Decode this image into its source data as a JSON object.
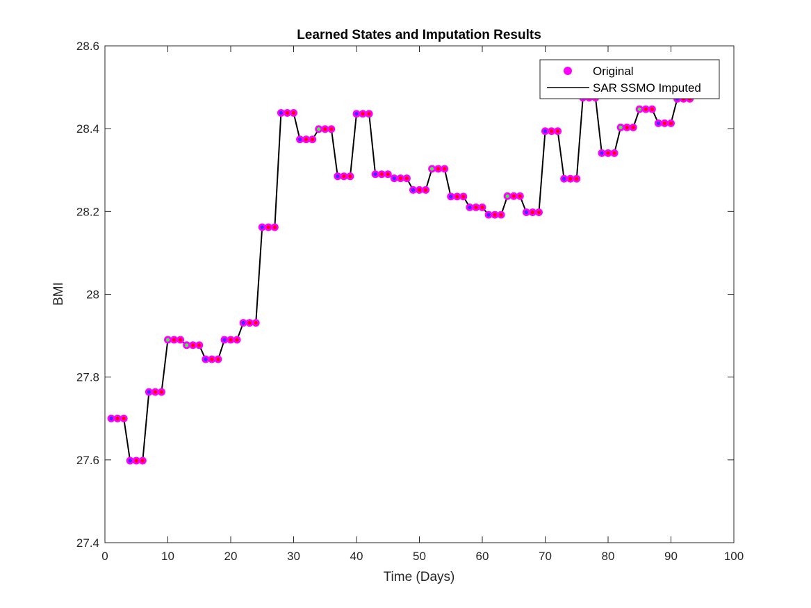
{
  "chart_data": {
    "type": "line",
    "title": "Learned States and Imputation Results",
    "xlabel": "Time (Days)",
    "ylabel": "BMI",
    "xlim": [
      0,
      100
    ],
    "ylim": [
      27.4,
      28.6
    ],
    "x_ticks": [
      "0",
      "10",
      "20",
      "30",
      "40",
      "50",
      "60",
      "70",
      "80",
      "90",
      "100"
    ],
    "y_ticks": [
      "27.4",
      "27.6",
      "27.8",
      "28",
      "28.2",
      "28.4",
      "28.6"
    ],
    "grid": false,
    "legend_position": "top-right",
    "legend": [
      {
        "label": "Original",
        "marker": "circle",
        "color": "#ff00ff"
      },
      {
        "label": "SAR SSMO Imputed",
        "marker": "line",
        "color": "#000000"
      }
    ],
    "colors": {
      "original_marker": "#ff00ff",
      "imputed_line": "#000000",
      "state_blue": "#3333ff",
      "state_red": "#ff0000",
      "state_green": "#33ff33"
    },
    "series": [
      {
        "name": "Original",
        "marker": "circle",
        "x": [
          1,
          2,
          3,
          4,
          5,
          6,
          7,
          8,
          9,
          10,
          11,
          12,
          13,
          14,
          15,
          16,
          17,
          18,
          19,
          20,
          21,
          22,
          23,
          24,
          25,
          26,
          27,
          28,
          29,
          30,
          31,
          32,
          33,
          34,
          35,
          36,
          37,
          38,
          39,
          40,
          41,
          42,
          43,
          44,
          45,
          46,
          47,
          48,
          49,
          50,
          51,
          52,
          53,
          54,
          55,
          56,
          57,
          58,
          59,
          60,
          61,
          62,
          63,
          64,
          65,
          66,
          67,
          68,
          69,
          70,
          71,
          72,
          73,
          74,
          75,
          76,
          77,
          78,
          79,
          80,
          81,
          82,
          83,
          84,
          85,
          86,
          87,
          88,
          89,
          90,
          91,
          92,
          93
        ],
        "y": [
          27.7,
          27.7,
          27.7,
          27.598,
          27.598,
          27.598,
          27.764,
          27.764,
          27.764,
          27.89,
          27.89,
          27.89,
          27.877,
          27.877,
          27.877,
          27.843,
          27.843,
          27.843,
          27.89,
          27.89,
          27.89,
          27.931,
          27.931,
          27.931,
          28.162,
          28.162,
          28.162,
          28.438,
          28.438,
          28.438,
          28.374,
          28.374,
          28.374,
          28.399,
          28.399,
          28.399,
          28.285,
          28.285,
          28.285,
          28.436,
          28.436,
          28.436,
          28.29,
          28.29,
          28.29,
          28.28,
          28.28,
          28.28,
          28.252,
          28.252,
          28.252,
          28.303,
          28.303,
          28.303,
          28.236,
          28.236,
          28.236,
          28.21,
          28.21,
          28.21,
          28.192,
          28.192,
          28.192,
          28.237,
          28.237,
          28.237,
          28.198,
          28.198,
          28.198,
          28.394,
          28.394,
          28.394,
          28.279,
          28.279,
          28.279,
          28.475,
          28.475,
          28.475,
          28.341,
          28.341,
          28.341,
          28.403,
          28.403,
          28.403,
          28.447,
          28.447,
          28.447,
          28.413,
          28.413,
          28.413,
          28.472,
          28.472,
          28.472
        ]
      },
      {
        "name": "SAR SSMO Imputed",
        "marker": "line",
        "x": [
          1,
          2,
          3,
          4,
          5,
          6,
          7,
          8,
          9,
          10,
          11,
          12,
          13,
          14,
          15,
          16,
          17,
          18,
          19,
          20,
          21,
          22,
          23,
          24,
          25,
          26,
          27,
          28,
          29,
          30,
          31,
          32,
          33,
          34,
          35,
          36,
          37,
          38,
          39,
          40,
          41,
          42,
          43,
          44,
          45,
          46,
          47,
          48,
          49,
          50,
          51,
          52,
          53,
          54,
          55,
          56,
          57,
          58,
          59,
          60,
          61,
          62,
          63,
          64,
          65,
          66,
          67,
          68,
          69,
          70,
          71,
          72,
          73,
          74,
          75,
          76,
          77,
          78,
          79,
          80,
          81,
          82,
          83,
          84,
          85,
          86,
          87,
          88,
          89,
          90,
          91,
          92,
          93
        ],
        "y": [
          27.7,
          27.7,
          27.7,
          27.598,
          27.598,
          27.598,
          27.764,
          27.764,
          27.764,
          27.89,
          27.89,
          27.89,
          27.877,
          27.877,
          27.877,
          27.843,
          27.843,
          27.843,
          27.89,
          27.89,
          27.89,
          27.931,
          27.931,
          27.931,
          28.162,
          28.162,
          28.162,
          28.438,
          28.438,
          28.438,
          28.374,
          28.374,
          28.374,
          28.399,
          28.399,
          28.399,
          28.285,
          28.285,
          28.285,
          28.436,
          28.436,
          28.436,
          28.29,
          28.29,
          28.29,
          28.28,
          28.28,
          28.28,
          28.252,
          28.252,
          28.252,
          28.303,
          28.303,
          28.303,
          28.236,
          28.236,
          28.236,
          28.21,
          28.21,
          28.21,
          28.192,
          28.192,
          28.192,
          28.237,
          28.237,
          28.237,
          28.198,
          28.198,
          28.198,
          28.394,
          28.394,
          28.394,
          28.279,
          28.279,
          28.279,
          28.475,
          28.475,
          28.475,
          28.341,
          28.341,
          28.341,
          28.403,
          28.403,
          28.403,
          28.447,
          28.447,
          28.447,
          28.413,
          28.413,
          28.413,
          28.472,
          28.472,
          28.472
        ]
      }
    ],
    "state_colors": [
      "blue",
      "red",
      "red",
      "blue",
      "red",
      "red",
      "blue",
      "red",
      "red",
      "green",
      "red",
      "red",
      "green",
      "red",
      "red",
      "blue",
      "red",
      "red",
      "blue",
      "red",
      "red",
      "blue",
      "red",
      "red",
      "blue",
      "red",
      "red",
      "blue",
      "red",
      "red",
      "blue",
      "red",
      "red",
      "green",
      "red",
      "red",
      "blue",
      "red",
      "red",
      "blue",
      "red",
      "red",
      "blue",
      "red",
      "red",
      "blue",
      "red",
      "red",
      "blue",
      "red",
      "red",
      "green",
      "red",
      "red",
      "blue",
      "red",
      "red",
      "blue",
      "red",
      "red",
      "blue",
      "red",
      "red",
      "green",
      "red",
      "red",
      "blue",
      "red",
      "red",
      "blue",
      "red",
      "red",
      "blue",
      "red",
      "red",
      "blue",
      "red",
      "red",
      "blue",
      "red",
      "red",
      "green",
      "red",
      "red",
      "green",
      "red",
      "red",
      "blue",
      "red",
      "red",
      "blue",
      "red",
      "red"
    ]
  }
}
